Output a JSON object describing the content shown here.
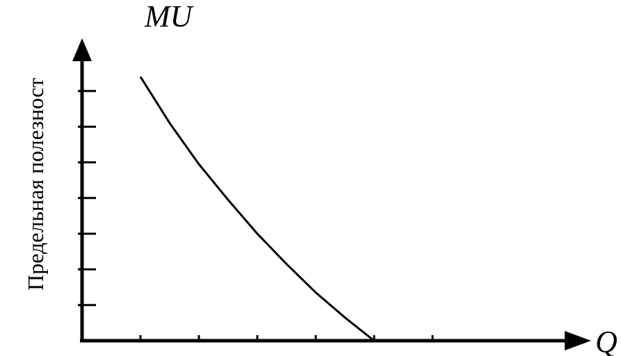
{
  "chart_data": {
    "type": "line",
    "title": "",
    "ylabel": "Предельная полезност",
    "y_axis_symbol": "MU",
    "x_axis_symbol": "Q",
    "x_ticks": 6,
    "y_ticks": 7,
    "grid": false,
    "legend": "none",
    "xlim": [
      0,
      6
    ],
    "ylim": [
      0,
      7.5
    ],
    "series": [
      {
        "x": [
          1,
          1.5,
          2,
          2.5,
          3,
          3.5,
          4,
          4.5,
          5
        ],
        "values": [
          7.4,
          6.1,
          4.95,
          3.95,
          3.0,
          2.15,
          1.35,
          0.65,
          0
        ]
      }
    ]
  }
}
